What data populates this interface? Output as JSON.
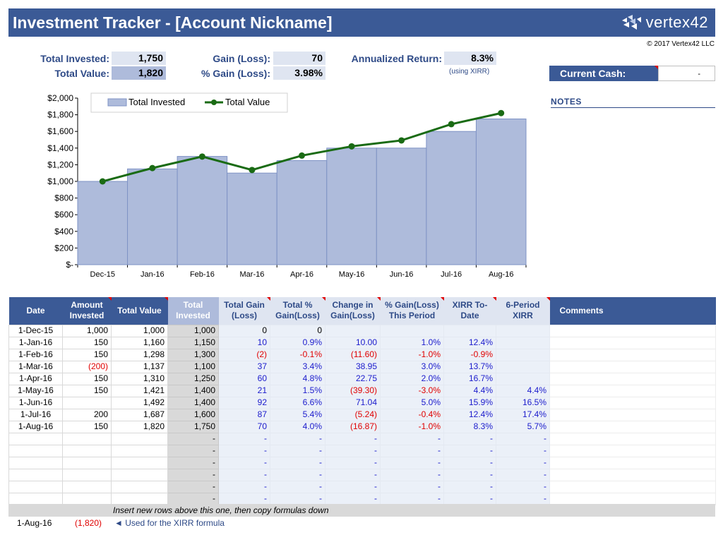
{
  "header": {
    "title": "Investment Tracker - [Account Nickname]",
    "logo_text": "vertex42",
    "copyright": "© 2017 Vertex42 LLC"
  },
  "summary": {
    "total_invested_label": "Total Invested:",
    "total_invested_value": "1,750",
    "total_value_label": "Total Value:",
    "total_value_value": "1,820",
    "gain_label": "Gain (Loss):",
    "gain_value": "70",
    "pct_gain_label": "% Gain (Loss):",
    "pct_gain_value": "3.98%",
    "annualized_label": "Annualized Return:",
    "annualized_value": "8.3%",
    "xirr_note": "(using XIRR)"
  },
  "cash": {
    "label": "Current Cash:",
    "value": "-"
  },
  "notes": {
    "label": "NOTES"
  },
  "chart_data": {
    "type": "bar",
    "categories": [
      "Dec-15",
      "Jan-16",
      "Feb-16",
      "Mar-16",
      "Apr-16",
      "May-16",
      "Jun-16",
      "Jul-16",
      "Aug-16"
    ],
    "series": [
      {
        "name": "Total Invested",
        "type": "bar",
        "color": "#aebbdb",
        "values": [
          1000,
          1150,
          1300,
          1100,
          1250,
          1400,
          1400,
          1600,
          1750
        ]
      },
      {
        "name": "Total Value",
        "type": "line",
        "color": "#1a6b14",
        "values": [
          1000,
          1160,
          1298,
          1137,
          1310,
          1421,
          1492,
          1687,
          1820
        ]
      }
    ],
    "ylim": [
      0,
      2000
    ],
    "yticks": [
      "$-",
      "$200",
      "$400",
      "$600",
      "$800",
      "$1,000",
      "$1,200",
      "$1,400",
      "$1,600",
      "$1,800",
      "$2,000"
    ],
    "legend": "top-left"
  },
  "table": {
    "headers": [
      "Date",
      "Amount Invested",
      "Total Value",
      "Total Invested",
      "Total Gain (Loss)",
      "Total % Gain(Loss)",
      "Change in Gain(Loss)",
      "% Gain(Loss) This Period",
      "XIRR To-Date",
      "6-Period XIRR",
      "Comments"
    ],
    "rows": [
      [
        "1-Dec-15",
        "1,000",
        "1,000",
        "1,000",
        "0",
        "0",
        "",
        "",
        "",
        "",
        ""
      ],
      [
        "1-Jan-16",
        "150",
        "1,160",
        "1,150",
        "10",
        "0.9%",
        "10.00",
        "1.0%",
        "12.4%",
        "",
        ""
      ],
      [
        "1-Feb-16",
        "150",
        "1,298",
        "1,300",
        "(2)",
        "-0.1%",
        "(11.60)",
        "-1.0%",
        "-0.9%",
        "",
        ""
      ],
      [
        "1-Mar-16",
        "(200)",
        "1,137",
        "1,100",
        "37",
        "3.4%",
        "38.95",
        "3.0%",
        "13.7%",
        "",
        ""
      ],
      [
        "1-Apr-16",
        "150",
        "1,310",
        "1,250",
        "60",
        "4.8%",
        "22.75",
        "2.0%",
        "16.7%",
        "",
        ""
      ],
      [
        "1-May-16",
        "150",
        "1,421",
        "1,400",
        "21",
        "1.5%",
        "(39.30)",
        "-3.0%",
        "4.4%",
        "4.4%",
        ""
      ],
      [
        "1-Jun-16",
        "",
        "1,492",
        "1,400",
        "92",
        "6.6%",
        "71.04",
        "5.0%",
        "15.9%",
        "16.5%",
        ""
      ],
      [
        "1-Jul-16",
        "200",
        "1,687",
        "1,600",
        "87",
        "5.4%",
        "(5.24)",
        "-0.4%",
        "12.4%",
        "17.4%",
        ""
      ],
      [
        "1-Aug-16",
        "150",
        "1,820",
        "1,750",
        "70",
        "4.0%",
        "(16.87)",
        "-1.0%",
        "8.3%",
        "5.7%",
        ""
      ],
      [
        "",
        "",
        "",
        "-",
        "-",
        "-",
        "-",
        "-",
        "-",
        "-",
        ""
      ],
      [
        "",
        "",
        "",
        "-",
        "-",
        "-",
        "-",
        "-",
        "-",
        "-",
        ""
      ],
      [
        "",
        "",
        "",
        "-",
        "-",
        "-",
        "-",
        "-",
        "-",
        "-",
        ""
      ],
      [
        "",
        "",
        "",
        "-",
        "-",
        "-",
        "-",
        "-",
        "-",
        "-",
        ""
      ],
      [
        "",
        "",
        "",
        "-",
        "-",
        "-",
        "-",
        "-",
        "-",
        "-",
        ""
      ],
      [
        "",
        "",
        "",
        "-",
        "-",
        "-",
        "-",
        "-",
        "-",
        "-",
        ""
      ]
    ]
  },
  "footer": {
    "insert_note": "Insert new rows above this one, then copy formulas down",
    "date": "1-Aug-16",
    "value": "(1,820)",
    "note": "◄ Used for the XIRR formula"
  }
}
